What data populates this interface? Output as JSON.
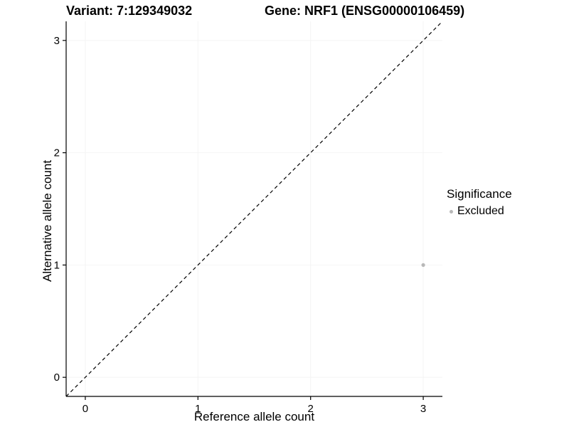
{
  "titles": {
    "variant": "Variant: 7:129349032",
    "gene": "Gene: NRF1 (ENSG00000106459)"
  },
  "chart_data": {
    "type": "scatter",
    "title": "Variant: 7:129349032   Gene: NRF1 (ENSG00000106459)",
    "xlabel": "Reference allele count",
    "ylabel": "Alternative allele count",
    "xlim": [
      -0.17,
      3.17
    ],
    "ylim": [
      -0.17,
      3.17
    ],
    "xticks": [
      0,
      1,
      2,
      3
    ],
    "yticks": [
      0,
      1,
      2,
      3
    ],
    "grid": true,
    "series": [
      {
        "name": "Excluded",
        "color": "#b8b8b8",
        "points": [
          {
            "x": 3,
            "y": 1
          }
        ]
      }
    ],
    "reference_line": {
      "style": "dashed",
      "color": "#000000",
      "from": [
        -0.17,
        -0.17
      ],
      "to": [
        3.17,
        3.17
      ]
    },
    "legend": {
      "title": "Significance",
      "position": "right",
      "entries": [
        {
          "label": "Excluded",
          "color": "#b8b8b8"
        }
      ]
    }
  }
}
